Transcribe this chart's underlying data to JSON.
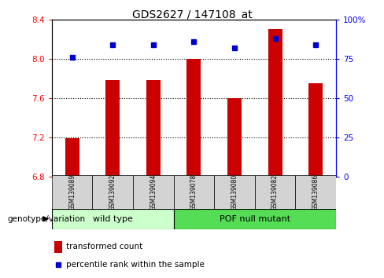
{
  "title": "GDS2627 / 147108_at",
  "samples": [
    "GSM139089",
    "GSM139092",
    "GSM139094",
    "GSM139078",
    "GSM139080",
    "GSM139082",
    "GSM139086"
  ],
  "bar_values": [
    7.19,
    7.78,
    7.78,
    8.0,
    7.6,
    8.3,
    7.75
  ],
  "percentile_values": [
    76,
    84,
    84,
    86,
    82,
    88,
    84
  ],
  "bar_color": "#cc0000",
  "dot_color": "#0000cc",
  "ylim_left": [
    6.8,
    8.4
  ],
  "ylim_right": [
    0,
    100
  ],
  "yticks_left": [
    6.8,
    7.2,
    7.6,
    8.0,
    8.4
  ],
  "yticks_right": [
    0,
    25,
    50,
    75,
    100
  ],
  "ytick_labels_right": [
    "0",
    "25",
    "50",
    "75",
    "100%"
  ],
  "grid_values": [
    8.0,
    7.6,
    7.2
  ],
  "wild_type_label": "wild type",
  "pof_label": "POF null mutant",
  "genotype_label": "genotype/variation",
  "legend_bar_label": "transformed count",
  "legend_dot_label": "percentile rank within the sample",
  "wild_type_color": "#ccffcc",
  "pof_color": "#55dd55",
  "bar_width": 0.35,
  "sample_box_color": "#d3d3d3"
}
